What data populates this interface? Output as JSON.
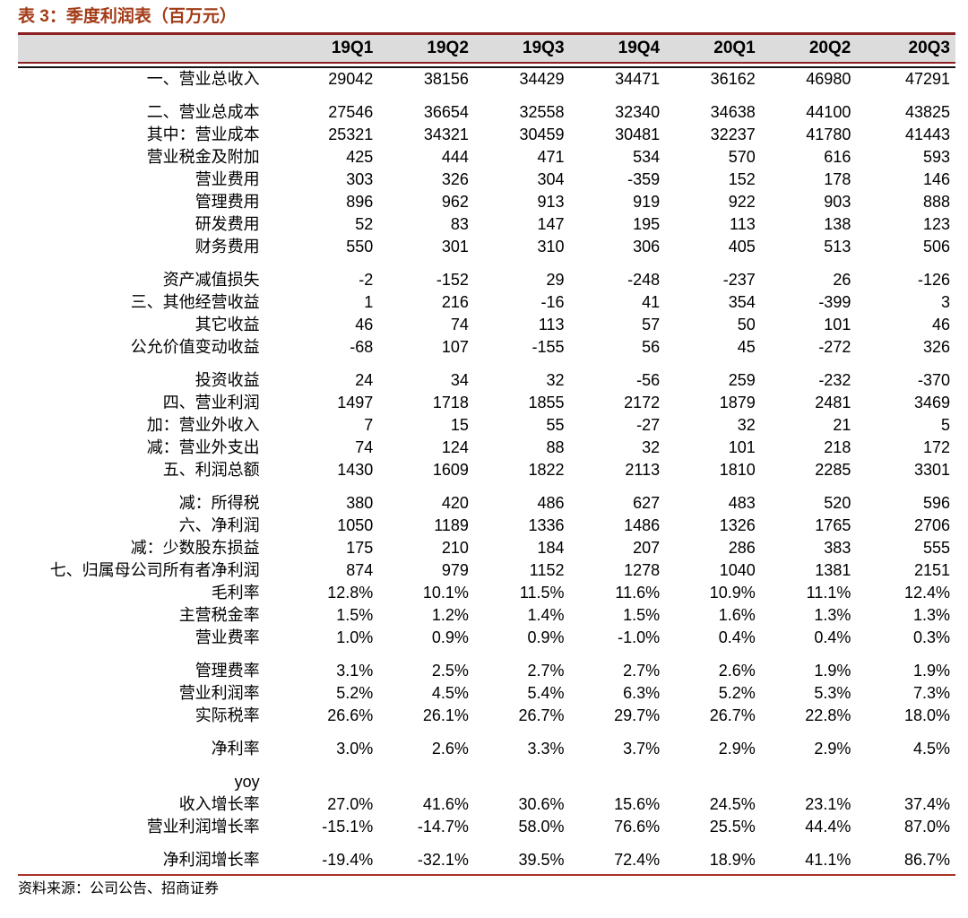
{
  "title": "表 3：季度利润表（百万元）",
  "source_note": "资料来源：公司公告、招商证券",
  "colors": {
    "title": "#a23b17",
    "header_bg": "#dcdcdc",
    "header_border": "#8c2022",
    "body_top_rule": "#141414",
    "bottom_line": "#a93226"
  },
  "chart_data": {
    "type": "table",
    "title": "表 3：季度利润表（百万元）",
    "columns": [
      "19Q1",
      "19Q2",
      "19Q3",
      "19Q4",
      "20Q1",
      "20Q2",
      "20Q3"
    ],
    "rows": [
      {
        "label": "一、营业总收入",
        "gap_before": false,
        "values": [
          "29042",
          "38156",
          "34429",
          "34471",
          "36162",
          "46980",
          "47291"
        ]
      },
      {
        "label": "二、营业总成本",
        "gap_before": true,
        "values": [
          "27546",
          "36654",
          "32558",
          "32340",
          "34638",
          "44100",
          "43825"
        ]
      },
      {
        "label": "其中：营业成本",
        "gap_before": false,
        "values": [
          "25321",
          "34321",
          "30459",
          "30481",
          "32237",
          "41780",
          "41443"
        ]
      },
      {
        "label": "营业税金及附加",
        "gap_before": false,
        "values": [
          "425",
          "444",
          "471",
          "534",
          "570",
          "616",
          "593"
        ]
      },
      {
        "label": "营业费用",
        "gap_before": false,
        "values": [
          "303",
          "326",
          "304",
          "-359",
          "152",
          "178",
          "146"
        ]
      },
      {
        "label": "管理费用",
        "gap_before": false,
        "values": [
          "896",
          "962",
          "913",
          "919",
          "922",
          "903",
          "888"
        ]
      },
      {
        "label": "研发费用",
        "gap_before": false,
        "values": [
          "52",
          "83",
          "147",
          "195",
          "113",
          "138",
          "123"
        ]
      },
      {
        "label": "财务费用",
        "gap_before": false,
        "values": [
          "550",
          "301",
          "310",
          "306",
          "405",
          "513",
          "506"
        ]
      },
      {
        "label": "资产减值损失",
        "gap_before": true,
        "values": [
          "-2",
          "-152",
          "29",
          "-248",
          "-237",
          "26",
          "-126"
        ]
      },
      {
        "label": "三、其他经营收益",
        "gap_before": false,
        "values": [
          "1",
          "216",
          "-16",
          "41",
          "354",
          "-399",
          "3"
        ]
      },
      {
        "label": "其它收益",
        "gap_before": false,
        "values": [
          "46",
          "74",
          "113",
          "57",
          "50",
          "101",
          "46"
        ]
      },
      {
        "label": "公允价值变动收益",
        "gap_before": false,
        "values": [
          "-68",
          "107",
          "-155",
          "56",
          "45",
          "-272",
          "326"
        ]
      },
      {
        "label": "投资收益",
        "gap_before": true,
        "values": [
          "24",
          "34",
          "32",
          "-56",
          "259",
          "-232",
          "-370"
        ]
      },
      {
        "label": "四、营业利润",
        "gap_before": false,
        "values": [
          "1497",
          "1718",
          "1855",
          "2172",
          "1879",
          "2481",
          "3469"
        ]
      },
      {
        "label": "加：营业外收入",
        "gap_before": false,
        "values": [
          "7",
          "15",
          "55",
          "-27",
          "32",
          "21",
          "5"
        ]
      },
      {
        "label": "减：营业外支出",
        "gap_before": false,
        "values": [
          "74",
          "124",
          "88",
          "32",
          "101",
          "218",
          "172"
        ]
      },
      {
        "label": "五、利润总额",
        "gap_before": false,
        "values": [
          "1430",
          "1609",
          "1822",
          "2113",
          "1810",
          "2285",
          "3301"
        ]
      },
      {
        "label": "减：所得税",
        "gap_before": true,
        "values": [
          "380",
          "420",
          "486",
          "627",
          "483",
          "520",
          "596"
        ]
      },
      {
        "label": "六、净利润",
        "gap_before": false,
        "values": [
          "1050",
          "1189",
          "1336",
          "1486",
          "1326",
          "1765",
          "2706"
        ]
      },
      {
        "label": "减：少数股东损益",
        "gap_before": false,
        "values": [
          "175",
          "210",
          "184",
          "207",
          "286",
          "383",
          "555"
        ]
      },
      {
        "label": "七、归属母公司所有者净利润",
        "gap_before": false,
        "values": [
          "874",
          "979",
          "1152",
          "1278",
          "1040",
          "1381",
          "2151"
        ]
      },
      {
        "label": "毛利率",
        "gap_before": false,
        "values": [
          "12.8%",
          "10.1%",
          "11.5%",
          "11.6%",
          "10.9%",
          "11.1%",
          "12.4%"
        ]
      },
      {
        "label": "主营税金率",
        "gap_before": false,
        "values": [
          "1.5%",
          "1.2%",
          "1.4%",
          "1.5%",
          "1.6%",
          "1.3%",
          "1.3%"
        ]
      },
      {
        "label": "营业费率",
        "gap_before": false,
        "values": [
          "1.0%",
          "0.9%",
          "0.9%",
          "-1.0%",
          "0.4%",
          "0.4%",
          "0.3%"
        ]
      },
      {
        "label": "管理费率",
        "gap_before": true,
        "values": [
          "3.1%",
          "2.5%",
          "2.7%",
          "2.7%",
          "2.6%",
          "1.9%",
          "1.9%"
        ]
      },
      {
        "label": "营业利润率",
        "gap_before": false,
        "values": [
          "5.2%",
          "4.5%",
          "5.4%",
          "6.3%",
          "5.2%",
          "5.3%",
          "7.3%"
        ]
      },
      {
        "label": "实际税率",
        "gap_before": false,
        "values": [
          "26.6%",
          "26.1%",
          "26.7%",
          "29.7%",
          "26.7%",
          "22.8%",
          "18.0%"
        ]
      },
      {
        "label": "净利率",
        "gap_before": true,
        "values": [
          "3.0%",
          "2.6%",
          "3.3%",
          "3.7%",
          "2.9%",
          "2.9%",
          "4.5%"
        ]
      },
      {
        "label": "yoy",
        "gap_before": true,
        "values": [
          "",
          "",
          "",
          "",
          "",
          "",
          ""
        ]
      },
      {
        "label": "收入增长率",
        "gap_before": false,
        "values": [
          "27.0%",
          "41.6%",
          "30.6%",
          "15.6%",
          "24.5%",
          "23.1%",
          "37.4%"
        ]
      },
      {
        "label": "营业利润增长率",
        "gap_before": false,
        "values": [
          "-15.1%",
          "-14.7%",
          "58.0%",
          "76.6%",
          "25.5%",
          "44.4%",
          "87.0%"
        ]
      },
      {
        "label": "净利润增长率",
        "gap_before": true,
        "values": [
          "-19.4%",
          "-32.1%",
          "39.5%",
          "72.4%",
          "18.9%",
          "41.1%",
          "86.7%"
        ]
      }
    ]
  }
}
